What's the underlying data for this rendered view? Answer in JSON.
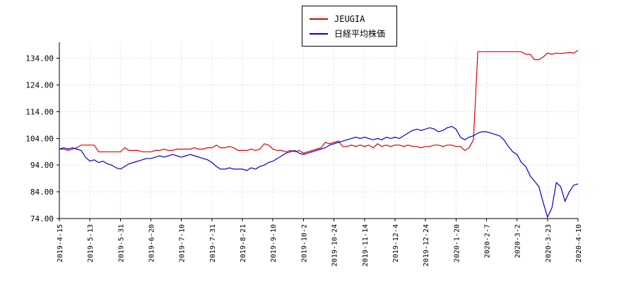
{
  "chart_data": {
    "type": "line",
    "title": "",
    "xlabel": "",
    "ylabel": "",
    "grid": true,
    "legend_position": "top-center",
    "ylim": [
      74,
      140
    ],
    "yticks": [
      74,
      84,
      94,
      104,
      114,
      124,
      134
    ],
    "ytick_format_suffix": ".00",
    "x_labels": [
      "2019-4-15",
      "2019-5-13",
      "2019-5-31",
      "2019-6-20",
      "2019-7-10",
      "2019-7-31",
      "2019-8-21",
      "2019-9-10",
      "2019-10-2",
      "2019-10-24",
      "2019-11-14",
      "2019-12-4",
      "2019-12-24",
      "2020-1-20",
      "2020-2-7",
      "2020-3-2",
      "2020-3-23",
      "2020-4-10"
    ],
    "series": [
      {
        "name": "JEUGIA",
        "color": "#dd0000",
        "values": [
          100,
          100,
          99.5,
          100,
          100.5,
          101.5,
          101.5,
          101.5,
          101.5,
          99,
          99,
          99,
          99,
          99,
          99,
          100.5,
          99.5,
          99.5,
          99.5,
          99,
          99,
          99,
          99.5,
          99.5,
          100,
          99.5,
          99.5,
          100,
          100,
          100,
          100,
          100.5,
          100,
          100,
          100.5,
          100.5,
          101.5,
          100.5,
          100.5,
          101,
          100.5,
          99.5,
          99.5,
          99.5,
          100,
          99.5,
          100,
          102,
          101.5,
          100,
          99.5,
          99.5,
          99,
          99.5,
          99,
          99.5,
          98.5,
          99,
          99.5,
          100,
          100.5,
          102.5,
          102,
          102.5,
          103,
          101,
          101,
          101.5,
          101,
          101.5,
          101,
          101.5,
          100.5,
          102,
          101,
          101.5,
          101,
          101.5,
          101.5,
          101,
          101.5,
          101,
          101,
          100.5,
          101,
          101,
          101.5,
          101.5,
          101,
          101.5,
          101.5,
          101,
          101,
          99.5,
          100.5,
          103.5,
          136.5,
          136.5,
          136.5,
          136.5,
          136.5,
          136.5,
          136.5,
          136.5,
          136.5,
          136.5,
          136.5,
          135.5,
          135.5,
          133.5,
          133.5,
          134.5,
          136,
          135.5,
          136,
          135.8,
          136,
          136.2,
          136,
          137
        ]
      },
      {
        "name": "日経平均株価",
        "color": "#0000cc",
        "values": [
          100,
          100.5,
          100,
          100.5,
          100,
          99.5,
          97,
          95.5,
          96,
          95,
          95.5,
          94.5,
          94,
          93,
          92.5,
          93.5,
          94.5,
          95,
          95.5,
          96,
          96.5,
          96.5,
          97,
          97.5,
          97,
          97.5,
          98,
          97.5,
          97,
          97.5,
          98,
          97.5,
          97,
          96.5,
          96,
          95,
          93.5,
          92.5,
          92.5,
          93,
          92.5,
          92.5,
          92.5,
          92,
          93,
          92.5,
          93.5,
          94,
          95,
          95.5,
          96.5,
          97.5,
          98.5,
          99,
          99.5,
          98.5,
          98,
          98.5,
          99,
          99.5,
          100,
          100.5,
          101.5,
          102,
          102.5,
          103,
          103.5,
          104,
          104.5,
          104,
          104.5,
          104,
          103.5,
          104,
          103.5,
          104.5,
          104,
          104.5,
          104,
          105,
          106,
          107,
          107.5,
          107,
          107.5,
          108,
          107.5,
          106.5,
          107,
          108,
          108.5,
          107.5,
          104.5,
          103.5,
          104.5,
          105,
          106,
          106.5,
          106.5,
          106,
          105.5,
          105,
          103.5,
          101,
          99,
          98,
          95,
          93.5,
          90,
          88,
          86,
          80,
          74.5,
          78,
          87.5,
          86,
          80.5,
          84,
          86.5,
          87
        ]
      }
    ]
  }
}
